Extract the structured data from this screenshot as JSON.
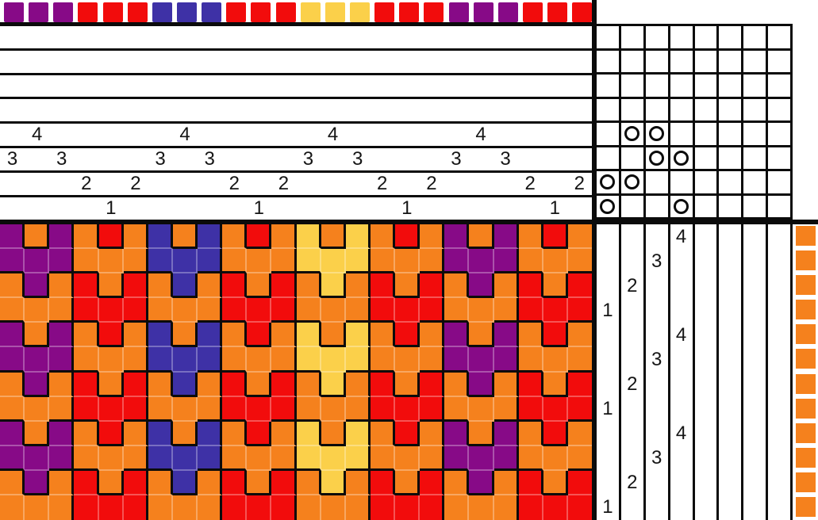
{
  "palette": {
    "purple": "#870A87",
    "red": "#F20C0C",
    "blue": "#3E31A6",
    "yellow": "#FBD04A",
    "orange": "#F5811D",
    "grid_line": "#0B0B0B",
    "background": "#FFFFFF"
  },
  "draft": {
    "shaft_count": 4,
    "treadle_count": 4,
    "grid_rows": 8,
    "grid_cols": 8,
    "warp_colors": [
      "purple",
      "purple",
      "purple",
      "red",
      "red",
      "red",
      "blue",
      "blue",
      "blue",
      "red",
      "red",
      "red",
      "yellow",
      "yellow",
      "yellow",
      "red",
      "red",
      "red",
      "purple",
      "purple",
      "purple",
      "red",
      "red",
      "red"
    ],
    "threading": [
      3,
      4,
      3,
      2,
      1,
      2,
      3,
      4,
      3,
      2,
      1,
      2,
      3,
      4,
      3,
      2,
      1,
      2,
      3,
      4,
      3,
      2,
      1,
      2
    ],
    "tieup": {
      "treadle_1": [
        1,
        2
      ],
      "treadle_2": [
        2,
        4
      ],
      "treadle_3": [
        3,
        4
      ],
      "treadle_4": [
        1,
        3
      ]
    },
    "treadling": [
      4,
      3,
      2,
      1,
      4,
      3,
      2,
      1,
      4,
      3,
      2,
      1
    ],
    "weft_colors": [
      "orange",
      "orange",
      "orange",
      "orange",
      "orange",
      "orange",
      "orange",
      "orange",
      "orange",
      "orange",
      "orange",
      "orange"
    ]
  }
}
